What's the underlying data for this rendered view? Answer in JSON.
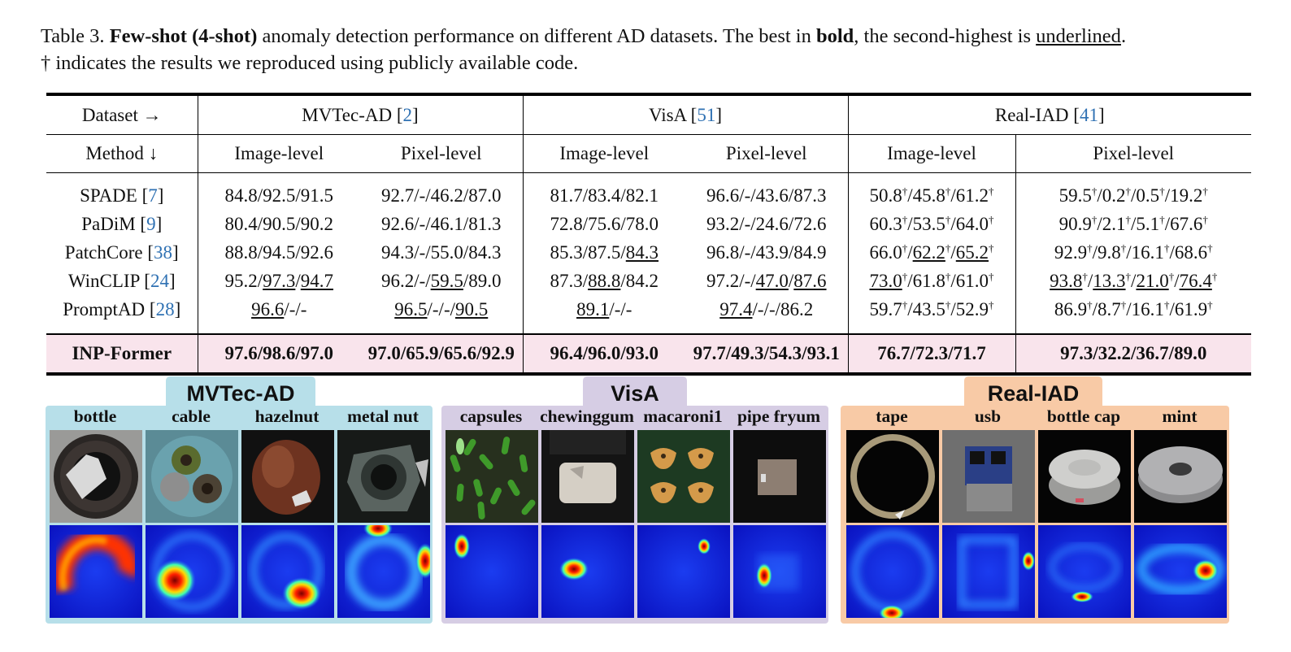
{
  "caption": {
    "prefix": "Table 3.",
    "bold1": "Few-shot (4-shot)",
    "text1": " anomaly detection performance on different AD datasets. The best in ",
    "bold2": "bold",
    "text2": ", the second-highest is ",
    "underlined": "underlined",
    "text3": ".",
    "line2": "† indicates the results we reproduced using publicly available code."
  },
  "table": {
    "dataset_header": "Dataset →",
    "method_header": "Method ↓",
    "datasets": [
      {
        "name": "MVTec-AD",
        "ref": "2"
      },
      {
        "name": "VisA",
        "ref": "51"
      },
      {
        "name": "Real-IAD",
        "ref": "41"
      }
    ],
    "levels": [
      "Image-level",
      "Pixel-level"
    ],
    "methods": [
      {
        "name": "SPADE",
        "ref": "7"
      },
      {
        "name": "PaDiM",
        "ref": "9"
      },
      {
        "name": "PatchCore",
        "ref": "38"
      },
      {
        "name": "WinCLIP",
        "ref": "24"
      },
      {
        "name": "PromptAD",
        "ref": "28"
      }
    ],
    "ours": {
      "name": "INP-Former",
      "values": [
        "97.6/98.6/97.0",
        "97.0/65.9/65.6/92.9",
        "96.4/96.0/93.0",
        "97.7/49.3/54.3/93.1",
        "76.7/72.3/71.7",
        "97.3/32.2/36.7/89.0"
      ]
    },
    "cells": [
      [
        "84.8/92.5/91.5",
        "92.7/-/46.2/87.0",
        "81.7/83.4/82.1",
        "96.6/-/43.6/87.3",
        "50.8†/45.8†/61.2†",
        "59.5†/0.2†/0.5†/19.2†"
      ],
      [
        "80.4/90.5/90.2",
        "92.6/-/46.1/81.3",
        "72.8/75.6/78.0",
        "93.2/-/24.6/72.6",
        "60.3†/53.5†/64.0†",
        "90.9†/2.1†/5.1†/67.6†"
      ],
      [
        "88.8/94.5/92.6",
        "94.3/-/55.0/84.3",
        "85.3/87.5/84.3",
        "96.8/-/43.9/84.9",
        "66.0†/62.2†/65.2†",
        "92.9†/9.8†/16.1†/68.6†"
      ],
      [
        "95.2/97.3/94.7",
        "96.2/-/59.5/89.0",
        "87.3/88.8/84.2",
        "97.2/-/47.0/87.6",
        "73.0†/61.8†/61.0†",
        "93.8†/13.3†/21.0†/76.4†"
      ],
      [
        "96.6/-/-",
        "96.5/-/-/90.5",
        "89.1/-/-",
        "97.4/-/-/86.2",
        "59.7†/43.5†/52.9†",
        "86.9†/8.7†/16.1†/61.9†"
      ]
    ]
  },
  "figure": {
    "panels": [
      {
        "title": "MVTec-AD",
        "color": "#b7dfe9",
        "categories": [
          "bottle",
          "cable",
          "hazelnut",
          "metal nut"
        ]
      },
      {
        "title": "VisA",
        "color": "#d6cde4",
        "categories": [
          "capsules",
          "chewinggum",
          "macaroni1",
          "pipe fryum"
        ]
      },
      {
        "title": "Real-IAD",
        "color": "#f8caa6",
        "categories": [
          "tape",
          "usb",
          "bottle cap",
          "mint"
        ]
      }
    ]
  }
}
